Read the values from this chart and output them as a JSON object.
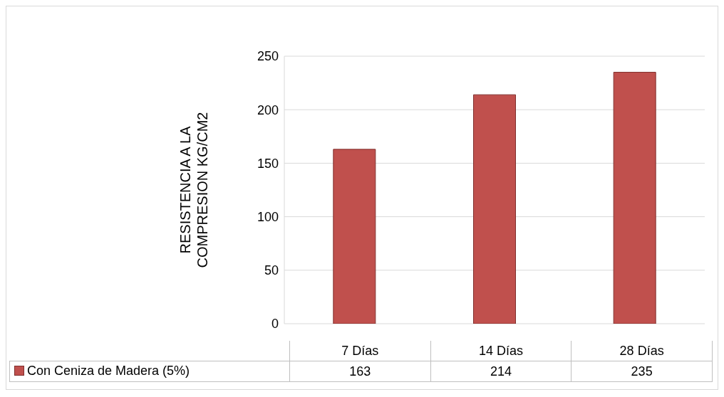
{
  "chart_data": {
    "type": "bar",
    "ylabel": "RESISTENCIA A LA COMPRESION KG/CM2",
    "categories": [
      "7 Días",
      "14 Días",
      "28 Días"
    ],
    "series": [
      {
        "name": "Con Ceniza de Madera (5%)",
        "color": "#c0504d",
        "values": [
          163,
          214,
          235
        ]
      }
    ],
    "ylim": [
      0,
      250
    ],
    "yticks": [
      0,
      50,
      100,
      150,
      200,
      250
    ],
    "grid": "y",
    "legend": "bottom",
    "data_labels": true
  }
}
